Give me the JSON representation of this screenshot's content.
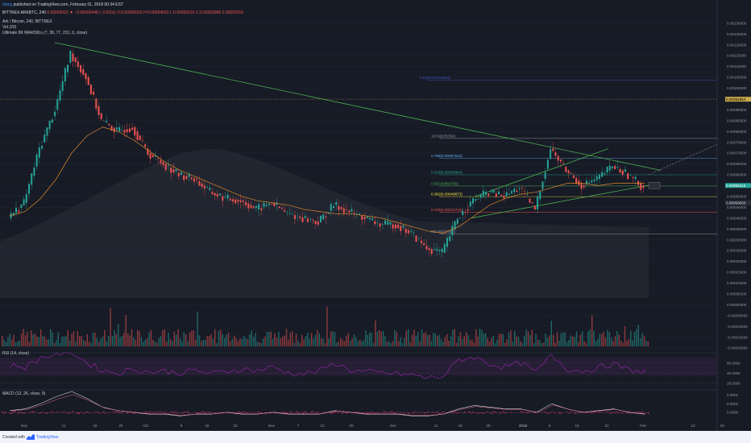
{
  "header": {
    "user": "kfang",
    "published": "published on TradingView.com, February 01, 2018 00:34 EST",
    "symbol": "BITTREX:ARKBTC, 240",
    "values": "0.00055016 ▼ −0.00000448 (−0.81%) O:0.00055016 H:0.00054532 L:0.00055016 C:0.00053985 0.00055016",
    "title": "Ark / Bitcoin, 240, BITTREX",
    "vol_label": "Vol (20)",
    "ma_label": "Ultimate 8K MA#038;s (7, 30, 77, 231, 0, close)"
  },
  "footer": {
    "created_with": "Created with",
    "brand": "TradingView"
  },
  "colors": {
    "bg": "#171b26",
    "up": "#26a69a",
    "down": "#ef5350",
    "ma": "#e08a2a",
    "trend": "#4caf50",
    "rsi": "#9c27b0",
    "macd": "#ffffff",
    "signal": "#e06688",
    "hist": "#c83b68"
  },
  "chart_data": [
    {
      "type": "candlestick",
      "title": "Ark / Bitcoin, 240, BITTREX",
      "y_axis_ticks": [
        "0.00130000",
        "0.00125000",
        "0.00120000",
        "0.00115000",
        "0.00110000",
        "0.00105000",
        "0.00100000",
        "0.00095000",
        "0.00090000",
        "0.00085000",
        "0.00080000",
        "0.00075000",
        "0.00070000",
        "0.00065000",
        "0.00060000",
        "0.00055000",
        "0.00050000",
        "0.00045000",
        "0.00040000",
        "0.00035000",
        "0.00030000",
        "0.00025000",
        "0.00020000",
        "0.00015000",
        "0.00010000",
        "0.00005000",
        "0.00000000",
        "-0.00005000",
        "-0.00010000",
        "-0.00015000",
        "-0.00020000"
      ],
      "ylim": [
        -0.0002,
        0.00131
      ],
      "x_ticks": [
        "Sep",
        "11",
        "18",
        "25",
        "Oct",
        "9",
        "16",
        "23",
        "Nov",
        "7",
        "13",
        "20",
        "Dec",
        "11",
        "18",
        "25",
        "2018",
        "8",
        "15",
        "22",
        "Feb",
        "12",
        "19"
      ],
      "price_label": "0.00055016",
      "price_label_2": "0.00050000",
      "top_badge": "0.00094854",
      "close_price": [
        0.0004,
        0.00047,
        0.00072,
        0.0009,
        0.00116,
        0.00105,
        0.00085,
        0.0008,
        0.00082,
        0.0007,
        0.00065,
        0.0006,
        0.00058,
        0.00052,
        0.00049,
        0.00048,
        0.00044,
        0.00047,
        0.00042,
        0.0004,
        0.00038,
        0.00046,
        0.00043,
        0.0004,
        0.00037,
        0.00037,
        0.00033,
        0.00026,
        0.00024,
        0.0004,
        0.00048,
        0.00052,
        0.0005,
        0.00054,
        0.00044,
        0.00072,
        0.00062,
        0.00055,
        0.00058,
        0.00064,
        0.0006,
        0.00054
      ],
      "ma": [
        0.00041,
        0.00043,
        0.00049,
        0.00058,
        0.0007,
        0.00078,
        0.00082,
        0.0008,
        0.00076,
        0.00071,
        0.00066,
        0.00062,
        0.00059,
        0.00056,
        0.00053,
        0.0005,
        0.00048,
        0.00047,
        0.00046,
        0.00044,
        0.00043,
        0.00042,
        0.00042,
        0.00041,
        0.0004,
        0.00038,
        0.00036,
        0.00034,
        0.00033,
        0.00036,
        0.00041,
        0.00046,
        0.00049,
        0.00051,
        0.00052,
        0.00054,
        0.00056,
        0.00056,
        0.00055,
        0.00056,
        0.00056,
        0.00056
      ],
      "fib_levels": [
        {
          "label": "1(0.00076784)",
          "value": 0.00076784,
          "color": "#9598a1"
        },
        {
          "label": "0.786(0.00067542)",
          "value": 0.00067542,
          "color": "#64b5f6"
        },
        {
          "label": "0.618(0.00059964)",
          "value": 0.00059964,
          "color": "#26a69a"
        },
        {
          "label": "0.5(0.00054795)",
          "value": 0.00054795,
          "color": "#4caf50"
        },
        {
          "label": "0.382(0.00049873)",
          "value": 0.00049873,
          "color": "#ffeb3b"
        },
        {
          "label": "0.236(0.00042734)",
          "value": 0.00042734,
          "color": "#ef5350"
        },
        {
          "label": "0(0.00032712)",
          "value": 0.00032712,
          "color": "#9598a1"
        },
        {
          "label": "1.618(0.00103654)",
          "value": 0.00103654,
          "color": "#3f51b5"
        }
      ]
    },
    {
      "type": "line",
      "title": "RSI (14, close)",
      "y_axis_ticks": [
        "60.0000",
        "40.0000",
        "20.0000"
      ],
      "values": [
        55,
        52,
        70,
        78,
        82,
        60,
        45,
        40,
        48,
        42,
        44,
        40,
        46,
        38,
        44,
        48,
        45,
        52,
        40,
        38,
        44,
        60,
        46,
        42,
        40,
        38,
        36,
        30,
        34,
        66,
        72,
        58,
        52,
        60,
        42,
        76,
        48,
        44,
        50,
        58,
        46,
        42
      ]
    },
    {
      "type": "line",
      "title": "MACD (12, 26, close, 9)",
      "y_axis_ticks": [
        "0.0001",
        "0.0001",
        "0.0000"
      ],
      "values": [
        1e-05,
        2e-05,
        5e-05,
        9e-05,
        0.00012,
        8e-05,
        3e-05,
        1e-05,
        0.0,
        -1e-05,
        -1e-05,
        -2e-05,
        -1e-05,
        -1e-05,
        0.0,
        -1e-05,
        -1e-05,
        0.0,
        -1e-05,
        -1e-05,
        -1e-05,
        1e-05,
        0.0,
        -1e-05,
        -1e-05,
        -1e-05,
        -2e-05,
        -2e-05,
        -1e-05,
        2e-05,
        4e-05,
        3e-05,
        2e-05,
        2e-05,
        0.0,
        5e-05,
        2e-05,
        0.0,
        1e-05,
        2e-05,
        0.0,
        -1e-05
      ]
    }
  ]
}
